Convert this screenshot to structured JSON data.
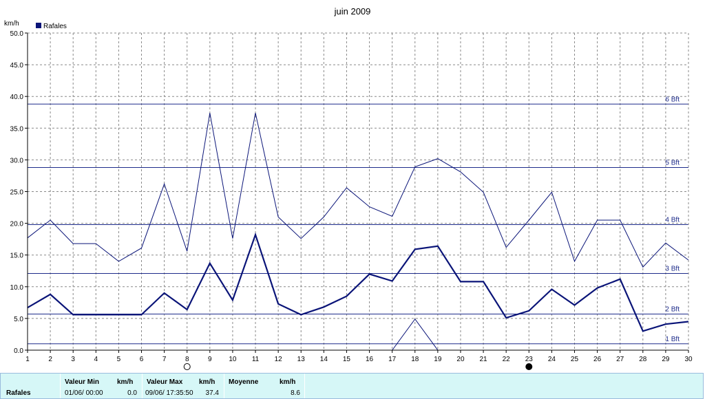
{
  "chart_data": {
    "type": "line",
    "title": "juin 2009",
    "ylabel": "km/h",
    "xlabel": "",
    "ylim": [
      0,
      50
    ],
    "yticks": [
      "0.0",
      "5.0",
      "10.0",
      "15.0",
      "20.0",
      "25.0",
      "30.0",
      "35.0",
      "40.0",
      "45.0",
      "50.0"
    ],
    "x": [
      1,
      2,
      3,
      4,
      5,
      6,
      7,
      8,
      9,
      10,
      11,
      12,
      13,
      14,
      15,
      16,
      17,
      18,
      19,
      20,
      21,
      22,
      23,
      24,
      25,
      26,
      27,
      28,
      29,
      30
    ],
    "grid": true,
    "legend": {
      "position": "top-left",
      "entries": [
        {
          "label": "Rafales",
          "color": "#0a1478"
        }
      ]
    },
    "series": [
      {
        "name": "Rafales",
        "color": "#0a1478",
        "style": "thick",
        "values": [
          6.7,
          8.8,
          5.6,
          5.6,
          5.6,
          5.6,
          9.0,
          6.4,
          13.7,
          7.9,
          18.2,
          7.3,
          5.6,
          6.8,
          8.5,
          12.0,
          10.9,
          15.9,
          16.4,
          10.8,
          10.8,
          5.1,
          6.2,
          9.6,
          7.1,
          9.8,
          11.2,
          3.0,
          4.1,
          4.5
        ]
      },
      {
        "color": "#0a1478",
        "style": "thin",
        "values": [
          17.7,
          20.5,
          16.8,
          16.8,
          14.0,
          16.1,
          26.2,
          15.6,
          37.4,
          17.6,
          37.4,
          21.0,
          17.6,
          21.0,
          25.6,
          22.6,
          21.1,
          28.9,
          30.2,
          28.1,
          24.9,
          16.2,
          20.5,
          24.9,
          14.0,
          20.5,
          20.5,
          13.1,
          16.9,
          14.2
        ]
      },
      {
        "color": "#0a1478",
        "style": "thin",
        "x": [
          17,
          18,
          19
        ],
        "values": [
          0.0,
          4.9,
          0.0
        ]
      }
    ],
    "beaufort": [
      {
        "label": "1 Bft",
        "value": 1.0
      },
      {
        "label": "2 Bft",
        "value": 5.7
      },
      {
        "label": "3 Bft",
        "value": 12.1
      },
      {
        "label": "4 Bft",
        "value": 19.8
      },
      {
        "label": "5 Bft",
        "value": 28.8
      },
      {
        "label": "6 Bft",
        "value": 38.8
      }
    ],
    "moon": [
      {
        "day": 8,
        "phase": "full"
      },
      {
        "day": 23,
        "phase": "new"
      }
    ]
  },
  "footer": {
    "row_label": "Rafales",
    "min_header": "Valeur Min",
    "min_unit": "km/h",
    "min_date": "01/06/  00:00",
    "min_value": "0.0",
    "max_header": "Valeur Max",
    "max_unit": "km/h",
    "max_date": "09/06/  17:35:50",
    "max_value": "37.4",
    "avg_header": "Moyenne",
    "avg_unit": "km/h",
    "avg_value": "8.6"
  }
}
